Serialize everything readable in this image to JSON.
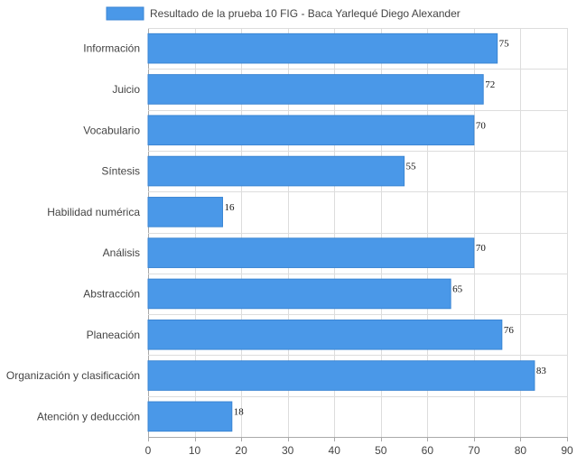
{
  "chart_data": {
    "type": "bar",
    "orientation": "horizontal",
    "legend": {
      "position": "top",
      "label": "Resultado de la prueba 10 FIG - Baca Yarlequé Diego Alexander"
    },
    "categories": [
      "Información",
      "Juicio",
      "Vocabulario",
      "Síntesis",
      "Habilidad numérica",
      "Análisis",
      "Abstracción",
      "Planeación",
      "Organización y clasificación",
      "Atención y deducción"
    ],
    "series": [
      {
        "name": "Resultado de la prueba 10 FIG - Baca Yarlequé Diego Alexander",
        "values": [
          75,
          72,
          70,
          55,
          16,
          70,
          65,
          76,
          83,
          18
        ]
      }
    ],
    "xlim": [
      0,
      90
    ],
    "x_ticks": [
      "0",
      "10",
      "20",
      "30",
      "40",
      "50",
      "60",
      "70",
      "80",
      "90"
    ],
    "grid": true,
    "colors": {
      "bar_fill": "#4a98e8",
      "bar_stroke": "#3b86d4",
      "grid": "#dddddd",
      "grid_strong": "#aaaaaa",
      "text": "#444444",
      "value_text": "#111111"
    }
  }
}
